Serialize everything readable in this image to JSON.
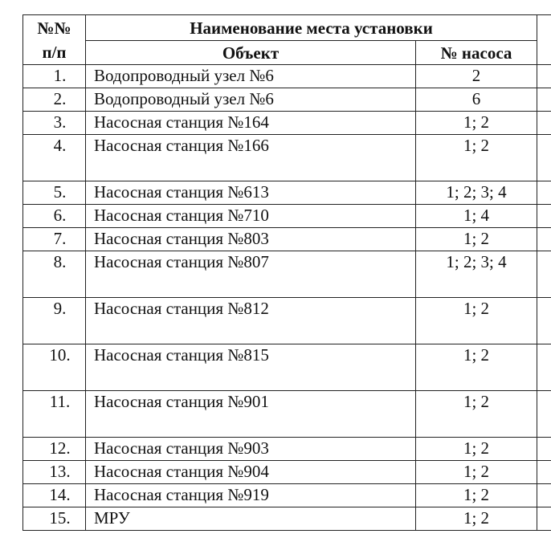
{
  "header": {
    "number_lines": [
      "№№",
      "п/п"
    ],
    "group_title": "Наименование места установки",
    "object": "Объект",
    "pump": "№ насоса"
  },
  "table": {
    "rows": [
      [
        "1.",
        "Водопроводный узел №6",
        "2"
      ],
      [
        "2.",
        "Водопроводный узел №6",
        "6"
      ],
      [
        "3.",
        "Насосная станция №164",
        "1; 2"
      ],
      [
        "4.",
        "Насосная станция №166",
        "1; 2"
      ],
      [
        "5.",
        "Насосная станция №613",
        "1; 2; 3; 4"
      ],
      [
        "6.",
        "Насосная станция №710",
        "1; 4"
      ],
      [
        "7.",
        "Насосная станция №803",
        "1; 2"
      ],
      [
        "8.",
        "Насосная станция №807",
        "1; 2; 3; 4"
      ],
      [
        "9.",
        "Насосная станция №812",
        "1; 2"
      ],
      [
        "10.",
        "Насосная станция №815",
        "1; 2"
      ],
      [
        "11.",
        "Насосная станция №901",
        "1; 2"
      ],
      [
        "12.",
        "Насосная станция №903",
        "1; 2"
      ],
      [
        "13.",
        "Насосная станция №904",
        "1; 2"
      ],
      [
        "14.",
        "Насосная станция №919",
        "1; 2"
      ],
      [
        "15.",
        "МРУ",
        "1; 2"
      ]
    ]
  }
}
